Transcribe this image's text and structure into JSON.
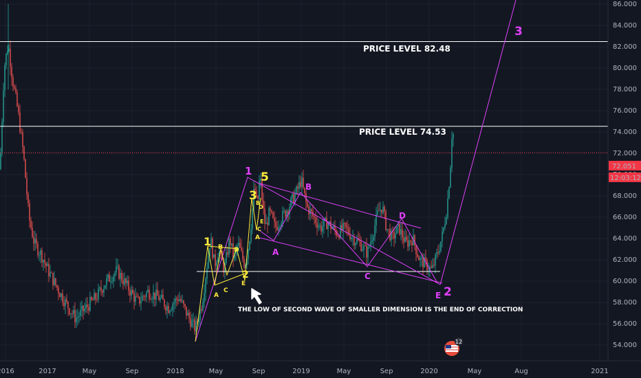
{
  "chart_data": {
    "type": "candlestick",
    "y_ticks": [
      "86.000",
      "84.000",
      "82.000",
      "80.000",
      "78.000",
      "76.000",
      "74.000",
      "72.000",
      "70.000",
      "68.000",
      "66.000",
      "64.000",
      "62.000",
      "60.000",
      "58.000",
      "56.000",
      "54.000"
    ],
    "x_ticks": [
      "2016",
      "2017",
      "May",
      "Sep",
      "2018",
      "May",
      "Sep",
      "2019",
      "May",
      "Sep",
      "2020",
      "May",
      "Aug",
      "2021"
    ],
    "ylim": [
      54,
      87
    ],
    "grid": true,
    "last_price": "72.051",
    "countdown": "12:03:12",
    "price_levels": [
      {
        "label": "PRICE LEVEL 82.48",
        "value": 82.48
      },
      {
        "label": "PRICE LEVEL  74.53",
        "value": 74.53
      },
      {
        "label": "",
        "value": 60.9
      }
    ],
    "note": "THE LOW OF SECOND WAVE OF SMALLER DIMENSION IS THE END OF CORRECTION",
    "waves": {
      "large": [
        "1",
        "2",
        "3"
      ],
      "medium": [
        "5",
        "3"
      ],
      "small": [
        "1",
        "2"
      ],
      "correction": [
        "A",
        "B",
        "C",
        "D",
        "E"
      ]
    },
    "price_path": [
      [
        0,
        70.5
      ],
      [
        6,
        80
      ],
      [
        12,
        82.3
      ],
      [
        18,
        79
      ],
      [
        26,
        76
      ],
      [
        34,
        72
      ],
      [
        42,
        66
      ],
      [
        50,
        63.5
      ],
      [
        60,
        62.5
      ],
      [
        70,
        61
      ],
      [
        82,
        59.5
      ],
      [
        95,
        58
      ],
      [
        110,
        56.5
      ],
      [
        125,
        57.5
      ],
      [
        140,
        58.5
      ],
      [
        155,
        60
      ],
      [
        170,
        61
      ],
      [
        185,
        59.5
      ],
      [
        200,
        58
      ],
      [
        215,
        59
      ],
      [
        230,
        58.5
      ],
      [
        245,
        57.5
      ],
      [
        260,
        58.5
      ],
      [
        275,
        56.5
      ],
      [
        284,
        55.5
      ],
      [
        294,
        58
      ],
      [
        300,
        61
      ],
      [
        306,
        64
      ],
      [
        312,
        61.5
      ],
      [
        318,
        63
      ],
      [
        326,
        61
      ],
      [
        334,
        64
      ],
      [
        340,
        62
      ],
      [
        346,
        63.5
      ],
      [
        356,
        61.5
      ],
      [
        362,
        63.5
      ],
      [
        366,
        66
      ],
      [
        370,
        69
      ],
      [
        374,
        67
      ],
      [
        378,
        70
      ],
      [
        382,
        67
      ],
      [
        386,
        65
      ],
      [
        392,
        66.5
      ],
      [
        400,
        65
      ],
      [
        410,
        66
      ],
      [
        420,
        67
      ],
      [
        432,
        68.5
      ],
      [
        438,
        69.5
      ],
      [
        446,
        67
      ],
      [
        456,
        66
      ],
      [
        466,
        65
      ],
      [
        476,
        65.5
      ],
      [
        490,
        64.5
      ],
      [
        502,
        65
      ],
      [
        514,
        64
      ],
      [
        524,
        63.5
      ],
      [
        534,
        62.6
      ],
      [
        542,
        64.5
      ],
      [
        550,
        66.5
      ],
      [
        556,
        67
      ],
      [
        562,
        65
      ],
      [
        570,
        64
      ],
      [
        580,
        65
      ],
      [
        590,
        63.5
      ],
      [
        600,
        64
      ],
      [
        610,
        62
      ],
      [
        620,
        61.5
      ],
      [
        628,
        61
      ],
      [
        633,
        62
      ],
      [
        638,
        63
      ],
      [
        644,
        64.5
      ],
      [
        650,
        67
      ],
      [
        654,
        70
      ],
      [
        656,
        72
      ],
      [
        658,
        75.5
      ],
      [
        660,
        72.05
      ]
    ]
  }
}
